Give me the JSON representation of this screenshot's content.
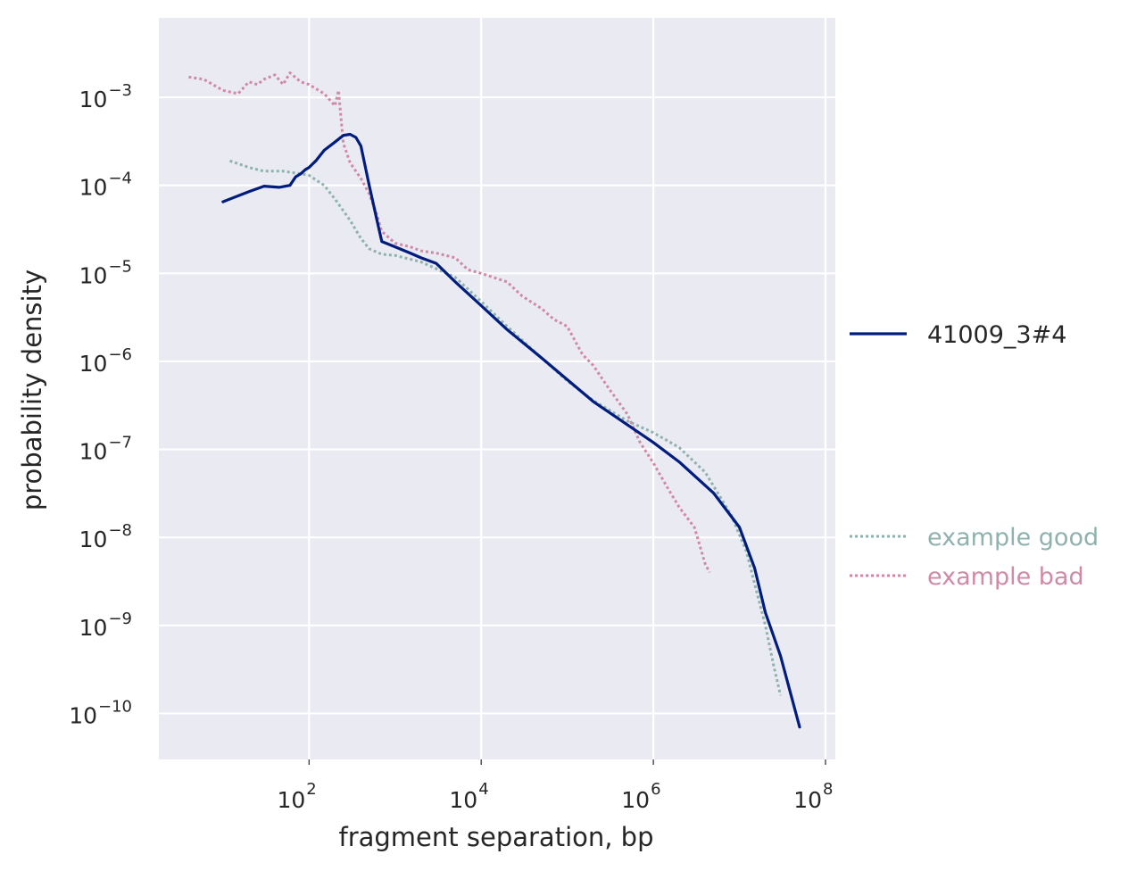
{
  "chart_data": {
    "type": "line",
    "xlabel": "fragment separation, bp",
    "ylabel": "probability density",
    "x_scale": "log",
    "y_scale": "log",
    "xlim": [
      1.8,
      130000000
    ],
    "ylim": [
      3e-11,
      0.008
    ],
    "grid": true,
    "legend_placement": "right",
    "x_ticks": [
      {
        "value": 100,
        "base": "10",
        "exp": "2"
      },
      {
        "value": 10000,
        "base": "10",
        "exp": "4"
      },
      {
        "value": 1000000,
        "base": "10",
        "exp": "6"
      },
      {
        "value": 100000000,
        "base": "10",
        "exp": "8"
      }
    ],
    "y_ticks": [
      {
        "value": 0.001,
        "base": "10",
        "exp": "−3"
      },
      {
        "value": 0.0001,
        "base": "10",
        "exp": "−4"
      },
      {
        "value": 1e-05,
        "base": "10",
        "exp": "−5"
      },
      {
        "value": 1e-06,
        "base": "10",
        "exp": "−6"
      },
      {
        "value": 1e-07,
        "base": "10",
        "exp": "−7"
      },
      {
        "value": 1e-08,
        "base": "10",
        "exp": "−8"
      },
      {
        "value": 1e-09,
        "base": "10",
        "exp": "−9"
      },
      {
        "value": 1e-10,
        "base": "10",
        "exp": "−10"
      }
    ],
    "series": [
      {
        "name": "41009_3#4",
        "style": "solid",
        "color": "#001c7f",
        "points": [
          [
            10,
            6.5e-05
          ],
          [
            20,
            8.5e-05
          ],
          [
            30,
            9.8e-05
          ],
          [
            45,
            9.5e-05
          ],
          [
            60,
            0.0001
          ],
          [
            70,
            0.000125
          ],
          [
            80,
            0.000135
          ],
          [
            90,
            0.00015
          ],
          [
            100,
            0.00016
          ],
          [
            120,
            0.00019
          ],
          [
            150,
            0.00025
          ],
          [
            200,
            0.00031
          ],
          [
            250,
            0.00037
          ],
          [
            300,
            0.00038
          ],
          [
            350,
            0.00035
          ],
          [
            400,
            0.00028
          ],
          [
            500,
            0.0001
          ],
          [
            600,
            4.5e-05
          ],
          [
            700,
            2.3e-05
          ],
          [
            1000,
            2e-05
          ],
          [
            1500,
            1.7e-05
          ],
          [
            2000,
            1.5e-05
          ],
          [
            3000,
            1.3e-05
          ],
          [
            5000,
            8e-06
          ],
          [
            10000,
            4.3e-06
          ],
          [
            20000,
            2.3e-06
          ],
          [
            50000,
            1.1e-06
          ],
          [
            100000,
            6.2e-07
          ],
          [
            200000,
            3.5e-07
          ],
          [
            500000,
            1.9e-07
          ],
          [
            1000000,
            1.2e-07
          ],
          [
            2000000,
            7.2e-08
          ],
          [
            5000000,
            3.2e-08
          ],
          [
            10000000,
            1.3e-08
          ],
          [
            15000000,
            4.5e-09
          ],
          [
            20000000,
            1.4e-09
          ],
          [
            30000000,
            4.5e-10
          ],
          [
            50000000,
            7e-11
          ]
        ]
      },
      {
        "name": "example good",
        "style": "dotted",
        "color": "#8fb2ad",
        "points": [
          [
            12,
            0.00019
          ],
          [
            20,
            0.00016
          ],
          [
            30,
            0.000145
          ],
          [
            50,
            0.000145
          ],
          [
            80,
            0.000135
          ],
          [
            100,
            0.00013
          ],
          [
            150,
            0.0001
          ],
          [
            200,
            7e-05
          ],
          [
            300,
            4e-05
          ],
          [
            400,
            2.5e-05
          ],
          [
            500,
            1.9e-05
          ],
          [
            700,
            1.65e-05
          ],
          [
            1000,
            1.6e-05
          ],
          [
            2000,
            1.35e-05
          ],
          [
            5000,
            9e-06
          ],
          [
            10000,
            4.8e-06
          ],
          [
            20000,
            2.5e-06
          ],
          [
            50000,
            1.1e-06
          ],
          [
            100000,
            6e-07
          ],
          [
            200000,
            3.6e-07
          ],
          [
            500000,
            2.1e-07
          ],
          [
            1000000,
            1.55e-07
          ],
          [
            2000000,
            1.05e-07
          ],
          [
            4000000,
            5.5e-08
          ],
          [
            8000000,
            1.8e-08
          ],
          [
            12000000,
            7e-09
          ],
          [
            15000000,
            3e-09
          ],
          [
            20000000,
            1e-09
          ],
          [
            25000000,
            3.5e-10
          ],
          [
            30000000,
            1.6e-10
          ]
        ]
      },
      {
        "name": "example bad",
        "style": "dotted",
        "color": "#d08aa6",
        "points": [
          [
            4,
            0.0017
          ],
          [
            6,
            0.0016
          ],
          [
            10,
            0.0012
          ],
          [
            15,
            0.0011
          ],
          [
            20,
            0.0015
          ],
          [
            25,
            0.0014
          ],
          [
            30,
            0.0016
          ],
          [
            40,
            0.0018
          ],
          [
            50,
            0.0014
          ],
          [
            60,
            0.0019
          ],
          [
            80,
            0.0015
          ],
          [
            100,
            0.0014
          ],
          [
            150,
            0.0011
          ],
          [
            200,
            0.0008
          ],
          [
            220,
            0.0012
          ],
          [
            250,
            0.0003
          ],
          [
            300,
            0.00018
          ],
          [
            400,
            0.00012
          ],
          [
            500,
            8e-05
          ],
          [
            600,
            5e-05
          ],
          [
            700,
            3e-05
          ],
          [
            1000,
            2.2e-05
          ],
          [
            1500,
            2e-05
          ],
          [
            2000,
            1.8e-05
          ],
          [
            3000,
            1.7e-05
          ],
          [
            5000,
            1.5e-05
          ],
          [
            7000,
            1.1e-05
          ],
          [
            10000,
            1e-05
          ],
          [
            20000,
            8e-06
          ],
          [
            30000,
            5.5e-06
          ],
          [
            50000,
            4e-06
          ],
          [
            70000,
            3e-06
          ],
          [
            100000,
            2.5e-06
          ],
          [
            150000,
            1.2e-06
          ],
          [
            200000,
            9e-07
          ],
          [
            300000,
            5e-07
          ],
          [
            500000,
            2.5e-07
          ],
          [
            700000,
            1.2e-07
          ],
          [
            1000000,
            7e-08
          ],
          [
            1500000,
            3.5e-08
          ],
          [
            2000000,
            2.2e-08
          ],
          [
            3000000,
            1.3e-08
          ],
          [
            4000000,
            5e-09
          ],
          [
            4500000,
            4e-09
          ]
        ]
      }
    ]
  }
}
